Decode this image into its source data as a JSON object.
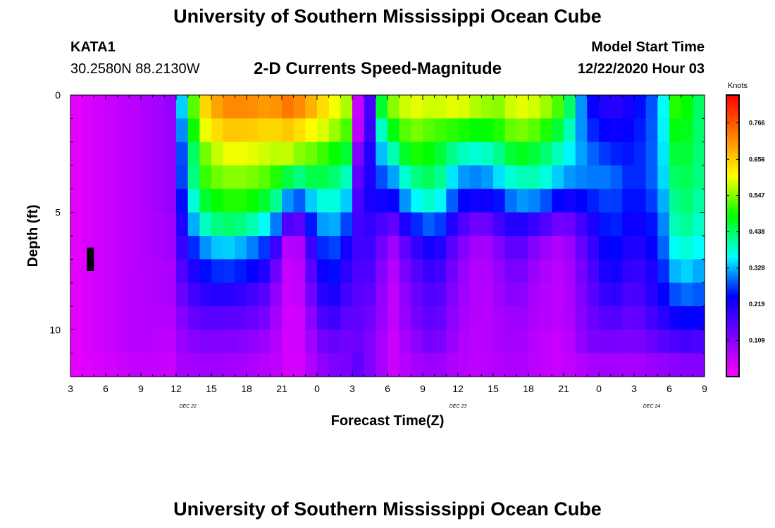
{
  "page": {
    "title_top": "University of Southern Mississippi Ocean Cube",
    "title_bottom": "University of Southern Mississippi Ocean Cube",
    "station_id": "KATA1",
    "station_coords": "30.2580N 88.2130W",
    "plot_title": "2-D Currents Speed-Magnitude",
    "model_start_label": "Model Start Time",
    "model_start_value": "12/22/2020 Hour 03"
  },
  "chart_data": {
    "type": "heatmap",
    "title": "2-D Currents Speed-Magnitude",
    "xlabel": "Forecast Time(Z)",
    "ylabel": "Depth (ft)",
    "colorbar_label": "Knots",
    "x_tick_labels": [
      "3",
      "6",
      "9",
      "12",
      "15",
      "18",
      "21",
      "0",
      "3",
      "6",
      "9",
      "12",
      "15",
      "18",
      "21",
      "0",
      "3",
      "6",
      "9"
    ],
    "date_labels": [
      {
        "text": "DEC 22",
        "hour_index": 10
      },
      {
        "text": "DEC 23",
        "hour_index": 33
      },
      {
        "text": "DEC 24",
        "hour_index": 49.5
      }
    ],
    "x_range_hours": [
      0,
      54
    ],
    "y_ticks": [
      0,
      5,
      10
    ],
    "y_range_ft": [
      0,
      12
    ],
    "colorbar_ticks": [
      0.766,
      0.656,
      0.547,
      0.438,
      0.328,
      0.219,
      0.109
    ],
    "colorbar_range": [
      0,
      0.85
    ],
    "depth_levels_ft": [
      0.5,
      1.5,
      2.5,
      3.5,
      4.5,
      5.5,
      6.5,
      7.5,
      8.5,
      9.5,
      10.5,
      11.5
    ],
    "profile_times": [
      0,
      3,
      6,
      8.5,
      9,
      11,
      13,
      15,
      17,
      18,
      18.6,
      19.4,
      20,
      22,
      24,
      24.5,
      25.3,
      26,
      27.5,
      29,
      31,
      33,
      35,
      36.5,
      38,
      40,
      42,
      44,
      46,
      48,
      50,
      51.5,
      53,
      54
    ],
    "profile_speeds": [
      [
        0.02,
        0.02,
        0.02,
        0.02,
        0.02,
        0.02,
        0.02,
        0.02,
        0.02,
        0.02,
        0.02,
        0.02
      ],
      [
        0.05,
        0.05,
        0.05,
        0.05,
        0.05,
        0.05,
        0.05,
        0.05,
        0.05,
        0.05,
        0.05,
        0.04
      ],
      [
        0.07,
        0.07,
        0.07,
        0.07,
        0.07,
        0.07,
        0.07,
        0.07,
        0.07,
        0.07,
        0.07,
        0.06
      ],
      [
        0.1,
        0.1,
        0.1,
        0.1,
        0.1,
        0.09,
        0.09,
        0.08,
        0.08,
        0.07,
        0.06,
        0.05
      ],
      [
        0.25,
        0.22,
        0.2,
        0.2,
        0.18,
        0.16,
        0.15,
        0.14,
        0.12,
        0.1,
        0.09,
        0.08
      ],
      [
        0.62,
        0.58,
        0.52,
        0.5,
        0.45,
        0.38,
        0.3,
        0.24,
        0.2,
        0.16,
        0.12,
        0.09
      ],
      [
        0.72,
        0.66,
        0.6,
        0.55,
        0.5,
        0.44,
        0.35,
        0.27,
        0.21,
        0.16,
        0.12,
        0.09
      ],
      [
        0.72,
        0.66,
        0.6,
        0.55,
        0.5,
        0.42,
        0.32,
        0.25,
        0.19,
        0.15,
        0.11,
        0.08
      ],
      [
        0.7,
        0.64,
        0.58,
        0.52,
        0.45,
        0.35,
        0.25,
        0.2,
        0.15,
        0.12,
        0.09,
        0.07
      ],
      [
        0.72,
        0.65,
        0.57,
        0.48,
        0.38,
        0.25,
        0.12,
        0.07,
        0.06,
        0.05,
        0.05,
        0.05
      ],
      [
        0.74,
        0.66,
        0.58,
        0.45,
        0.3,
        0.15,
        0.06,
        0.05,
        0.05,
        0.04,
        0.04,
        0.04
      ],
      [
        0.72,
        0.64,
        0.55,
        0.42,
        0.28,
        0.14,
        0.06,
        0.05,
        0.05,
        0.04,
        0.04,
        0.04
      ],
      [
        0.7,
        0.62,
        0.55,
        0.45,
        0.32,
        0.22,
        0.15,
        0.12,
        0.1,
        0.08,
        0.07,
        0.06
      ],
      [
        0.62,
        0.58,
        0.5,
        0.45,
        0.4,
        0.35,
        0.3,
        0.27,
        0.24,
        0.2,
        0.15,
        0.12
      ],
      [
        0.55,
        0.5,
        0.45,
        0.38,
        0.32,
        0.25,
        0.2,
        0.18,
        0.16,
        0.14,
        0.13,
        0.13
      ],
      [
        0.05,
        0.06,
        0.12,
        0.15,
        0.17,
        0.18,
        0.18,
        0.17,
        0.16,
        0.15,
        0.14,
        0.15
      ],
      [
        0.08,
        0.12,
        0.18,
        0.2,
        0.22,
        0.2,
        0.19,
        0.18,
        0.16,
        0.14,
        0.13,
        0.13
      ],
      [
        0.42,
        0.35,
        0.3,
        0.26,
        0.22,
        0.18,
        0.16,
        0.14,
        0.13,
        0.12,
        0.1,
        0.1
      ],
      [
        0.55,
        0.48,
        0.4,
        0.32,
        0.24,
        0.15,
        0.09,
        0.07,
        0.06,
        0.06,
        0.05,
        0.05
      ],
      [
        0.6,
        0.55,
        0.5,
        0.42,
        0.35,
        0.25,
        0.18,
        0.15,
        0.13,
        0.12,
        0.1,
        0.08
      ],
      [
        0.58,
        0.52,
        0.48,
        0.45,
        0.4,
        0.3,
        0.24,
        0.2,
        0.18,
        0.16,
        0.14,
        0.1
      ],
      [
        0.6,
        0.5,
        0.4,
        0.32,
        0.25,
        0.18,
        0.13,
        0.11,
        0.1,
        0.09,
        0.08,
        0.07
      ],
      [
        0.56,
        0.48,
        0.38,
        0.3,
        0.22,
        0.12,
        0.07,
        0.06,
        0.06,
        0.06,
        0.06,
        0.06
      ],
      [
        0.55,
        0.5,
        0.42,
        0.35,
        0.25,
        0.18,
        0.12,
        0.1,
        0.09,
        0.08,
        0.08,
        0.07
      ],
      [
        0.6,
        0.55,
        0.48,
        0.4,
        0.32,
        0.22,
        0.17,
        0.14,
        0.12,
        0.1,
        0.09,
        0.08
      ],
      [
        0.58,
        0.52,
        0.45,
        0.4,
        0.3,
        0.18,
        0.1,
        0.08,
        0.07,
        0.07,
        0.06,
        0.06
      ],
      [
        0.5,
        0.44,
        0.38,
        0.32,
        0.22,
        0.12,
        0.07,
        0.06,
        0.06,
        0.06,
        0.05,
        0.05
      ],
      [
        0.25,
        0.27,
        0.3,
        0.3,
        0.25,
        0.2,
        0.17,
        0.15,
        0.14,
        0.13,
        0.12,
        0.08
      ],
      [
        0.2,
        0.23,
        0.26,
        0.3,
        0.28,
        0.27,
        0.26,
        0.24,
        0.21,
        0.17,
        0.13,
        0.09
      ],
      [
        0.23,
        0.24,
        0.25,
        0.25,
        0.24,
        0.22,
        0.2,
        0.18,
        0.16,
        0.14,
        0.12,
        0.08
      ],
      [
        0.3,
        0.3,
        0.3,
        0.3,
        0.28,
        0.26,
        0.25,
        0.23,
        0.22,
        0.19,
        0.15,
        0.1
      ],
      [
        0.5,
        0.48,
        0.46,
        0.44,
        0.42,
        0.4,
        0.37,
        0.33,
        0.28,
        0.23,
        0.17,
        0.11
      ],
      [
        0.48,
        0.47,
        0.46,
        0.45,
        0.44,
        0.42,
        0.39,
        0.35,
        0.3,
        0.25,
        0.18,
        0.12
      ],
      [
        0.4,
        0.4,
        0.4,
        0.4,
        0.38,
        0.36,
        0.34,
        0.3,
        0.27,
        0.22,
        0.16,
        0.11
      ]
    ],
    "missing_data_marker": {
      "hour": 1.5,
      "depth_ft": [
        6.5,
        7.5
      ],
      "color": "#000000"
    }
  },
  "colors": {
    "frame": "#000000",
    "background": "#ffffff",
    "colormap": [
      "#ff00ff",
      "#7f00ff",
      "#0000ff",
      "#00ffff",
      "#00ff00",
      "#ffff00",
      "#ff8000",
      "#ff0000"
    ]
  }
}
